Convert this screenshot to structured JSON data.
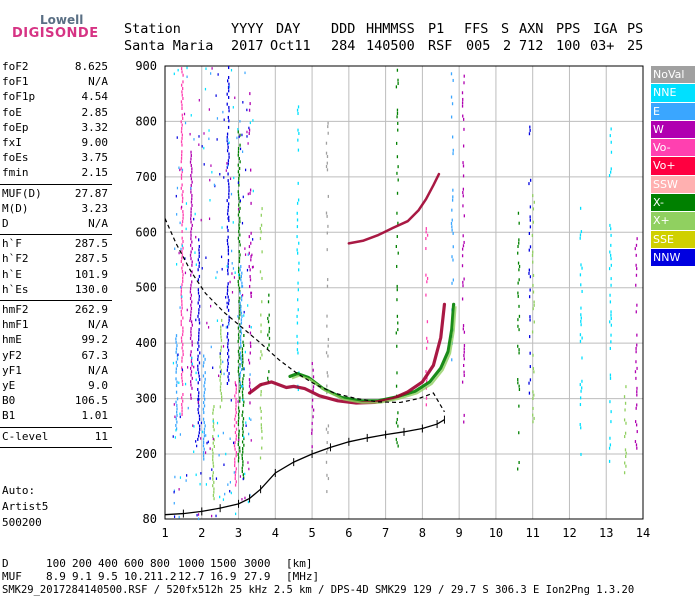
{
  "logo": {
    "line1": "Lowell",
    "line2": "DIGISONDE"
  },
  "header": {
    "labels": [
      "Station",
      "YYYY",
      "DAY",
      "DDD",
      "HHMMSS",
      "P1",
      "FFS",
      "S",
      "AXN",
      "PPS",
      "IGA",
      "PS"
    ],
    "values": [
      "Santa Maria",
      "2017",
      "Oct11",
      "284",
      "140500",
      "RSF",
      "005",
      "2",
      "712",
      "100",
      "03+",
      "25"
    ]
  },
  "params": {
    "group1": [
      {
        "label": "foF2",
        "value": "8.625"
      },
      {
        "label": "foF1",
        "value": "N/A"
      },
      {
        "label": "foF1p",
        "value": "4.54"
      },
      {
        "label": "foE",
        "value": "2.85"
      },
      {
        "label": "foEp",
        "value": "3.32"
      },
      {
        "label": "fxI",
        "value": "9.00"
      },
      {
        "label": "foEs",
        "value": "3.75"
      },
      {
        "label": "fmin",
        "value": "2.15"
      }
    ],
    "group2": [
      {
        "label": "MUF(D)",
        "value": "27.87"
      },
      {
        "label": "M(D)",
        "value": "3.23"
      },
      {
        "label": "D",
        "value": "N/A"
      }
    ],
    "group3": [
      {
        "label": "h`F",
        "value": "287.5"
      },
      {
        "label": "h`F2",
        "value": "287.5"
      },
      {
        "label": "h`E",
        "value": "101.9"
      },
      {
        "label": "h`Es",
        "value": "130.0"
      }
    ],
    "group4": [
      {
        "label": "hmF2",
        "value": "262.9"
      },
      {
        "label": "hmF1",
        "value": "N/A"
      },
      {
        "label": "hmE",
        "value": "99.2"
      },
      {
        "label": "yF2",
        "value": "67.3"
      },
      {
        "label": "yF1",
        "value": "N/A"
      },
      {
        "label": "yE",
        "value": "9.0"
      },
      {
        "label": "B0",
        "value": "106.5"
      },
      {
        "label": "B1",
        "value": "1.01"
      }
    ],
    "group5": [
      {
        "label": "C-level",
        "value": "11"
      }
    ]
  },
  "auto": {
    "line1": "Auto:",
    "line2": "Artist5",
    "line3": "500200"
  },
  "legend": [
    {
      "name": "NoVal",
      "color": "#a0a0a0"
    },
    {
      "name": "NNE",
      "color": "#00e0ff"
    },
    {
      "name": "E",
      "color": "#3aa6ff"
    },
    {
      "name": "W",
      "color": "#b000b0"
    },
    {
      "name": "Vo-",
      "color": "#ff40b0"
    },
    {
      "name": "Vo+",
      "color": "#ff0040"
    },
    {
      "name": "SSW",
      "color": "#ffb0b0"
    },
    {
      "name": "X-",
      "color": "#008000"
    },
    {
      "name": "X+",
      "color": "#90d060"
    },
    {
      "name": "SSE",
      "color": "#d0d000"
    },
    {
      "name": "NNW",
      "color": "#0000e0"
    }
  ],
  "muf_table": {
    "d_label": "D",
    "d_values": [
      "100",
      "200",
      "400",
      "600",
      "800",
      "1000",
      "1500",
      "3000"
    ],
    "d_unit": "[km]",
    "muf_label": "MUF",
    "muf_values": [
      "8.9",
      "9.1",
      "9.5",
      "10.2",
      "11.2",
      "12.7",
      "16.9",
      "27.9"
    ],
    "muf_unit": "[MHz]"
  },
  "footer": "SMK29_2017284140500.RSF / 520fx512h 25 kHz 2.5 km / DPS-4D SMK29 129 / 29.7 S 306.3 E Ion2Png 1.3.20",
  "chart_data": {
    "type": "scatter",
    "x_ticks": [
      1,
      2,
      3,
      4,
      5,
      6,
      7,
      8,
      9,
      10,
      11,
      12,
      13,
      14
    ],
    "y_ticks": [
      80,
      200,
      300,
      400,
      500,
      600,
      700,
      800,
      900
    ],
    "xlim": [
      1,
      14
    ],
    "ylim": [
      80,
      900
    ],
    "grid": true,
    "series": [
      {
        "name": "X-",
        "color": "#008000",
        "x": [
          4.4,
          4.6,
          4.9,
          5.3,
          5.8,
          6.3,
          6.8,
          7.3,
          7.8,
          8.2,
          8.5,
          8.7,
          8.8,
          8.85
        ],
        "y": [
          340,
          345,
          338,
          318,
          302,
          296,
          296,
          303,
          313,
          330,
          355,
          385,
          425,
          470
        ]
      },
      {
        "name": "Vo+",
        "color": "#a00030",
        "x": [
          3.3,
          3.6,
          3.9,
          4.1,
          4.3,
          4.5,
          4.8,
          5.2,
          5.7,
          6.2,
          6.7,
          7.2,
          7.6,
          8.0,
          8.3,
          8.5,
          8.6
        ],
        "y": [
          310,
          325,
          330,
          325,
          320,
          322,
          318,
          305,
          296,
          292,
          293,
          300,
          312,
          330,
          360,
          410,
          470
        ]
      },
      {
        "name": "upper trace",
        "color": "#a00030",
        "x": [
          6.0,
          6.4,
          6.8,
          7.2,
          7.6,
          7.9,
          8.1,
          8.3,
          8.45
        ],
        "y": [
          580,
          585,
          595,
          608,
          620,
          640,
          660,
          685,
          705
        ]
      }
    ],
    "profile_curve": {
      "x": [
        1.0,
        1.5,
        2.0,
        2.5,
        3.0,
        3.3,
        3.6,
        4.0,
        4.5,
        5.0,
        5.5,
        6.0,
        6.5,
        7.0,
        7.5,
        8.0,
        8.4,
        8.6
      ],
      "y": [
        88,
        90,
        94,
        100,
        108,
        118,
        135,
        165,
        185,
        200,
        212,
        222,
        229,
        235,
        240,
        246,
        254,
        262
      ]
    },
    "dashed_curve": {
      "x": [
        1.0,
        1.3,
        1.7,
        2.1,
        2.6,
        3.1,
        3.6,
        4.1,
        4.6,
        5.1,
        5.6,
        6.2,
        6.8,
        7.4,
        7.9,
        8.3,
        8.6
      ],
      "y": [
        625,
        580,
        530,
        490,
        456,
        428,
        400,
        370,
        345,
        325,
        310,
        300,
        294,
        293,
        300,
        310,
        276
      ]
    }
  }
}
